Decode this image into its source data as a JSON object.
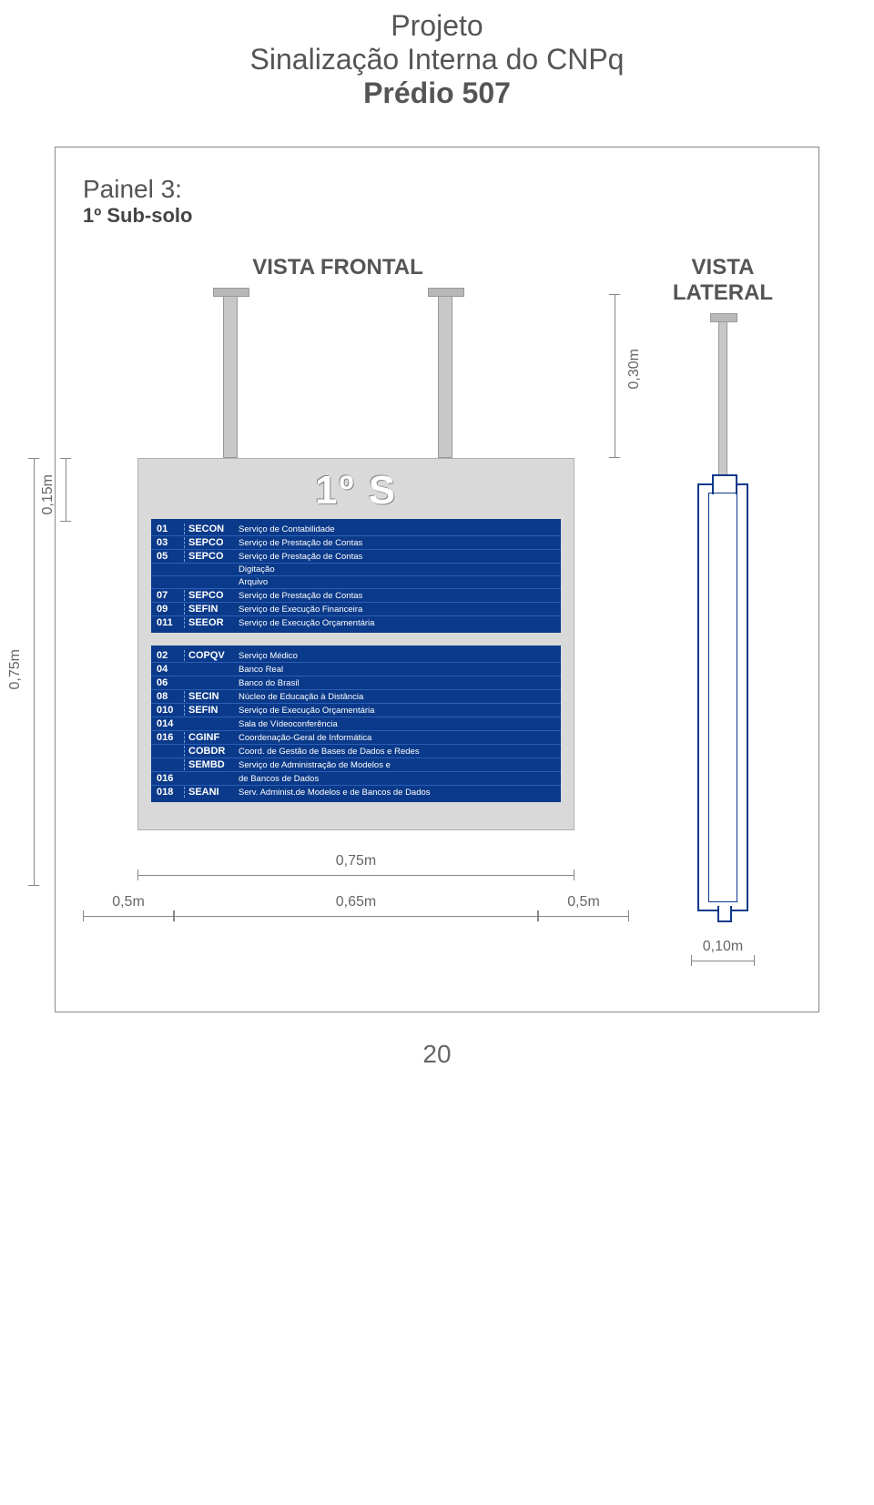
{
  "title": {
    "line1": "Projeto",
    "line2": "Sinalização Interna do CNPq",
    "line3": "Prédio 507"
  },
  "panel": {
    "label": "Painel 3:",
    "sub": "1º Sub-solo"
  },
  "views": {
    "frontal": "VISTA FRONTAL",
    "lateral": "VISTA LATERAL"
  },
  "sign_title": "1º S",
  "colors": {
    "plaque_bg": "#0b3a8a",
    "plaque_text": "#ffffff",
    "board_bg": "#d9d9d9",
    "gray_metal": "#c8c8c8"
  },
  "dimensions": {
    "hanger_height": "0,30m",
    "title_band": "0,15m",
    "board_height": "0,75m",
    "board_width": "0,75m",
    "inner_width": "0,65m",
    "margin_left": "0,5m",
    "margin_right": "0,5m",
    "lateral_width": "0,10m"
  },
  "group1": [
    {
      "num": "01",
      "code": "SECON",
      "desc": "Serviço de Contabilidade"
    },
    {
      "num": "03",
      "code": "SEPCO",
      "desc": "Serviço de Prestação de Contas"
    },
    {
      "num": "05",
      "code": "SEPCO",
      "desc": "Serviço de Prestação de Contas"
    },
    {
      "num": "",
      "code": "",
      "desc": "Digitação"
    },
    {
      "num": "",
      "code": "",
      "desc": "Arquivo"
    },
    {
      "num": "07",
      "code": "SEPCO",
      "desc": "Serviço de Prestação de Contas"
    },
    {
      "num": "09",
      "code": "SEFIN",
      "desc": "Serviço de Execução Financeira"
    },
    {
      "num": "011",
      "code": "SEEOR",
      "desc": "Serviço de Execução Orçamentária"
    }
  ],
  "group2": [
    {
      "num": "02",
      "code": "COPQV",
      "desc": "Serviço Médico"
    },
    {
      "num": "04",
      "code": "",
      "desc": "Banco Real"
    },
    {
      "num": "06",
      "code": "",
      "desc": "Banco do Brasil"
    },
    {
      "num": "08",
      "code": "SECIN",
      "desc": "Núcleo de Educação à Distância"
    },
    {
      "num": "010",
      "code": "SEFIN",
      "desc": "Serviço de Execução Orçamentária"
    },
    {
      "num": "014",
      "code": "",
      "desc": "Sala de Vídeoconferência"
    },
    {
      "num": "016",
      "code": "CGINF",
      "desc": "Coordenação-Geral de Informática"
    },
    {
      "num": "",
      "code": "COBDR",
      "desc": "Coord. de Gestão de Bases de Dados e Redes"
    },
    {
      "num": "",
      "code": "SEMBD",
      "desc": "Serviço de Administração de Modelos e"
    },
    {
      "num": "016",
      "code": "",
      "desc": "de Bancos de Dados"
    },
    {
      "num": "018",
      "code": "SEANI",
      "desc": "Serv. Administ.de Modelos e de Bancos de Dados"
    }
  ],
  "page_number": "20"
}
